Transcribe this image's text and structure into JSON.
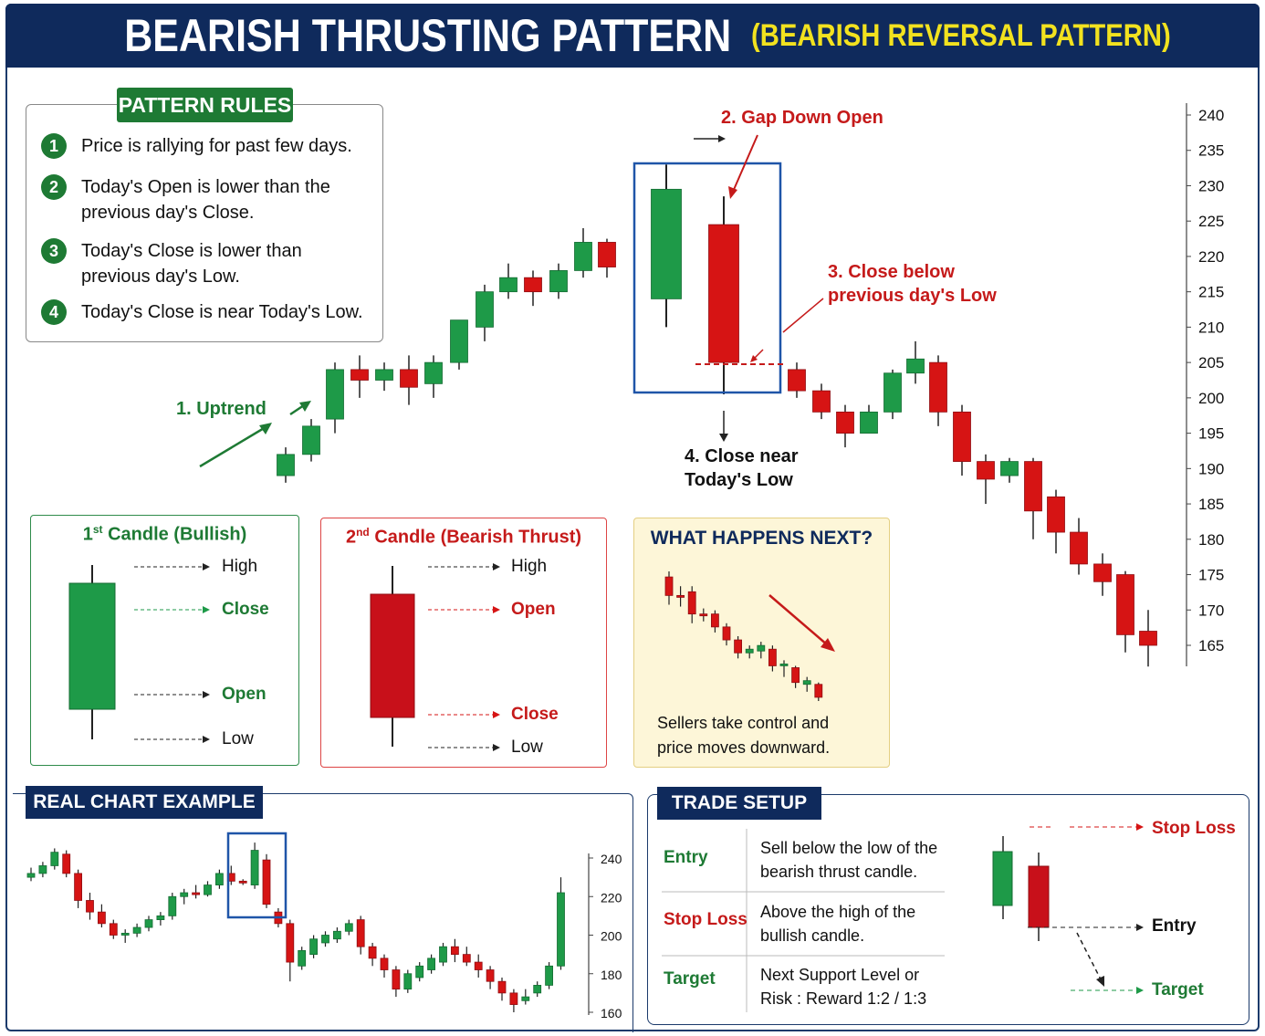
{
  "header": {
    "title": "BEARISH THRUSTING PATTERN",
    "subtitle": "(BEARISH REVERSAL PATTERN)"
  },
  "rules": {
    "tag": "PATTERN RULES",
    "items": [
      {
        "num": "1",
        "text": "Price is rallying for past few days."
      },
      {
        "num": "2",
        "text": "Today's Open is lower than the previous day's Close."
      },
      {
        "num": "3",
        "text": "Today's Close is lower than previous day's Low."
      },
      {
        "num": "4",
        "text": "Today's Close is near Today's Low."
      }
    ]
  },
  "annotations": {
    "uptrend": "1. Uptrend",
    "gap_down": "2. Gap Down Open",
    "close_below_1": "3. Close below",
    "close_below_2": "previous day's Low",
    "close_near_1": "4. Close near",
    "close_near_2": "Today's Low"
  },
  "candle1": {
    "title": "Candle (Bullish)",
    "num": "1",
    "sup": "st",
    "high": "High",
    "close": "Close",
    "open": "Open",
    "low": "Low"
  },
  "candle2": {
    "title": "Candle (Bearish Thrust)",
    "num": "2",
    "sup": "nd",
    "high": "High",
    "open": "Open",
    "close": "Close",
    "low": "Low"
  },
  "next": {
    "title": "WHAT HAPPENS NEXT?",
    "line1": "Sellers take control and",
    "line2": "price moves downward."
  },
  "real_chart": {
    "tag": "REAL CHART EXAMPLE"
  },
  "trade": {
    "tag": "TRADE SETUP",
    "rows": [
      {
        "label": "Entry",
        "line1": "Sell below the low of the",
        "line2": "bearish thrust candle."
      },
      {
        "label": "Stop Loss",
        "line1": "Above the high of the",
        "line2": "bullish candle."
      },
      {
        "label": "Target",
        "line1": "Next Support Level or",
        "line2": "Risk : Reward 1:2 / 1:3"
      }
    ],
    "diagram": {
      "stop_loss": "Stop Loss",
      "entry": "Entry",
      "target": "Target"
    }
  },
  "colors": {
    "navy": "#0f2a5c",
    "green": "#1e9a48",
    "red": "#d61414",
    "yellow_title": "#f2e21f",
    "accent_green": "#1e7a34"
  },
  "chart_data": [
    {
      "type": "candlestick",
      "title": "BEARISH THRUSTING PATTERN",
      "y_axis": {
        "ticks": [
          240,
          235,
          230,
          225,
          220,
          215,
          210,
          205,
          200,
          195,
          190,
          185,
          180,
          175,
          170,
          165
        ],
        "range": [
          162,
          241
        ],
        "position": "right"
      },
      "candles": [
        {
          "o": 189,
          "h": 193,
          "l": 188,
          "c": 192
        },
        {
          "o": 192,
          "h": 197,
          "l": 191,
          "c": 196
        },
        {
          "o": 197,
          "h": 205,
          "l": 195,
          "c": 204
        },
        {
          "o": 204,
          "h": 206,
          "l": 200,
          "c": 202.5
        },
        {
          "o": 202.5,
          "h": 205,
          "l": 201,
          "c": 204
        },
        {
          "o": 204,
          "h": 206,
          "l": 199,
          "c": 201.5
        },
        {
          "o": 202,
          "h": 206,
          "l": 200,
          "c": 205
        },
        {
          "o": 205,
          "h": 211,
          "l": 204,
          "c": 211
        },
        {
          "o": 210,
          "h": 216,
          "l": 208,
          "c": 215
        },
        {
          "o": 215,
          "h": 219,
          "l": 214,
          "c": 217
        },
        {
          "o": 217,
          "h": 218,
          "l": 213,
          "c": 215
        },
        {
          "o": 215,
          "h": 219,
          "l": 214,
          "c": 218
        },
        {
          "o": 218,
          "h": 224,
          "l": 217,
          "c": 222
        },
        {
          "o": 222,
          "h": 222.5,
          "l": 217,
          "c": 218.5
        },
        {
          "o": 214,
          "h": 233,
          "l": 210,
          "c": 229.5
        },
        {
          "o": 224.5,
          "h": 228.5,
          "l": 200.5,
          "c": 205
        },
        {
          "o": 204,
          "h": 205,
          "l": 200,
          "c": 201
        },
        {
          "o": 201,
          "h": 202,
          "l": 197,
          "c": 198
        },
        {
          "o": 198,
          "h": 199,
          "l": 193,
          "c": 195
        },
        {
          "o": 195,
          "h": 199,
          "l": 195,
          "c": 198
        },
        {
          "o": 198,
          "h": 204,
          "l": 197,
          "c": 203.5
        },
        {
          "o": 203.5,
          "h": 208,
          "l": 202,
          "c": 205.5
        },
        {
          "o": 205,
          "h": 206,
          "l": 196,
          "c": 198
        },
        {
          "o": 198,
          "h": 199,
          "l": 189,
          "c": 191
        },
        {
          "o": 191,
          "h": 192,
          "l": 185,
          "c": 188.5
        },
        {
          "o": 189,
          "h": 191.5,
          "l": 188,
          "c": 191
        },
        {
          "o": 191,
          "h": 191.5,
          "l": 180,
          "c": 184
        },
        {
          "o": 186,
          "h": 187,
          "l": 178,
          "c": 181
        },
        {
          "o": 181,
          "h": 183,
          "l": 175,
          "c": 176.5
        },
        {
          "o": 176.5,
          "h": 178,
          "l": 172,
          "c": 174
        },
        {
          "o": 175,
          "h": 175.5,
          "l": 164,
          "c": 166.5
        },
        {
          "o": 167,
          "h": 170,
          "l": 162,
          "c": 165
        }
      ]
    },
    {
      "type": "candlestick",
      "title": "REAL CHART EXAMPLE",
      "y_axis": {
        "ticks": [
          240,
          220,
          200,
          180,
          160
        ],
        "range": [
          158,
          250
        ],
        "position": "right"
      },
      "candles": [
        {
          "o": 230,
          "h": 235,
          "l": 228,
          "c": 232
        },
        {
          "o": 232,
          "h": 238,
          "l": 230,
          "c": 236
        },
        {
          "o": 236,
          "h": 245,
          "l": 234,
          "c": 243
        },
        {
          "o": 242,
          "h": 244,
          "l": 230,
          "c": 232
        },
        {
          "o": 232,
          "h": 234,
          "l": 214,
          "c": 218
        },
        {
          "o": 218,
          "h": 222,
          "l": 208,
          "c": 212
        },
        {
          "o": 212,
          "h": 216,
          "l": 204,
          "c": 206
        },
        {
          "o": 206,
          "h": 208,
          "l": 198,
          "c": 200
        },
        {
          "o": 200,
          "h": 203,
          "l": 196,
          "c": 201
        },
        {
          "o": 201,
          "h": 206,
          "l": 199,
          "c": 204
        },
        {
          "o": 204,
          "h": 210,
          "l": 202,
          "c": 208
        },
        {
          "o": 208,
          "h": 212,
          "l": 205,
          "c": 210
        },
        {
          "o": 210,
          "h": 222,
          "l": 208,
          "c": 220
        },
        {
          "o": 220,
          "h": 224,
          "l": 216,
          "c": 222
        },
        {
          "o": 222,
          "h": 226,
          "l": 219,
          "c": 221
        },
        {
          "o": 221,
          "h": 228,
          "l": 220,
          "c": 226
        },
        {
          "o": 226,
          "h": 234,
          "l": 224,
          "c": 232
        },
        {
          "o": 232,
          "h": 236,
          "l": 226,
          "c": 228
        },
        {
          "o": 228,
          "h": 229,
          "l": 226,
          "c": 227.5
        },
        {
          "o": 226,
          "h": 248,
          "l": 224,
          "c": 244
        },
        {
          "o": 239,
          "h": 242,
          "l": 214,
          "c": 216
        },
        {
          "o": 212,
          "h": 214,
          "l": 204,
          "c": 206
        },
        {
          "o": 206,
          "h": 208,
          "l": 176,
          "c": 186
        },
        {
          "o": 184,
          "h": 194,
          "l": 182,
          "c": 192
        },
        {
          "o": 190,
          "h": 200,
          "l": 188,
          "c": 198
        },
        {
          "o": 196,
          "h": 202,
          "l": 194,
          "c": 200
        },
        {
          "o": 198,
          "h": 204,
          "l": 196,
          "c": 202
        },
        {
          "o": 202,
          "h": 208,
          "l": 200,
          "c": 206
        },
        {
          "o": 208,
          "h": 210,
          "l": 190,
          "c": 194
        },
        {
          "o": 194,
          "h": 196,
          "l": 184,
          "c": 188
        },
        {
          "o": 188,
          "h": 190,
          "l": 178,
          "c": 182
        },
        {
          "o": 182,
          "h": 184,
          "l": 168,
          "c": 172
        },
        {
          "o": 172,
          "h": 182,
          "l": 170,
          "c": 180
        },
        {
          "o": 178,
          "h": 186,
          "l": 176,
          "c": 184
        },
        {
          "o": 182,
          "h": 190,
          "l": 180,
          "c": 188
        },
        {
          "o": 186,
          "h": 196,
          "l": 184,
          "c": 194
        },
        {
          "o": 194,
          "h": 198,
          "l": 186,
          "c": 190
        },
        {
          "o": 190,
          "h": 194,
          "l": 184,
          "c": 186
        },
        {
          "o": 186,
          "h": 190,
          "l": 178,
          "c": 182
        },
        {
          "o": 182,
          "h": 184,
          "l": 172,
          "c": 176
        },
        {
          "o": 176,
          "h": 178,
          "l": 166,
          "c": 170
        },
        {
          "o": 170,
          "h": 172,
          "l": 160,
          "c": 164
        },
        {
          "o": 166,
          "h": 172,
          "l": 164,
          "c": 168
        },
        {
          "o": 170,
          "h": 176,
          "l": 168,
          "c": 174
        },
        {
          "o": 174,
          "h": 186,
          "l": 172,
          "c": 184
        },
        {
          "o": 184,
          "h": 230,
          "l": 182,
          "c": 222
        }
      ]
    },
    {
      "type": "candlestick",
      "title": "WHAT HAPPENS NEXT?",
      "candles": [
        {
          "o": 10,
          "h": 10.3,
          "l": 8.5,
          "c": 9
        },
        {
          "o": 9,
          "h": 9.5,
          "l": 8.4,
          "c": 8.9
        },
        {
          "o": 9.2,
          "h": 9.5,
          "l": 7.5,
          "c": 8
        },
        {
          "o": 8,
          "h": 8.3,
          "l": 7.6,
          "c": 7.9
        },
        {
          "o": 8,
          "h": 8.2,
          "l": 7,
          "c": 7.3
        },
        {
          "o": 7.3,
          "h": 7.5,
          "l": 6.3,
          "c": 6.6
        },
        {
          "o": 6.6,
          "h": 6.8,
          "l": 5.6,
          "c": 5.9
        },
        {
          "o": 5.9,
          "h": 6.3,
          "l": 5.6,
          "c": 6.1
        },
        {
          "o": 6,
          "h": 6.5,
          "l": 5.6,
          "c": 6.3
        },
        {
          "o": 6.1,
          "h": 6.3,
          "l": 4.9,
          "c": 5.2
        },
        {
          "o": 5.2,
          "h": 5.5,
          "l": 4.6,
          "c": 5.3
        },
        {
          "o": 5.1,
          "h": 5.2,
          "l": 4,
          "c": 4.3
        },
        {
          "o": 4.2,
          "h": 4.6,
          "l": 3.8,
          "c": 4.4
        },
        {
          "o": 4.2,
          "h": 4.3,
          "l": 3.3,
          "c": 3.5
        }
      ]
    }
  ]
}
